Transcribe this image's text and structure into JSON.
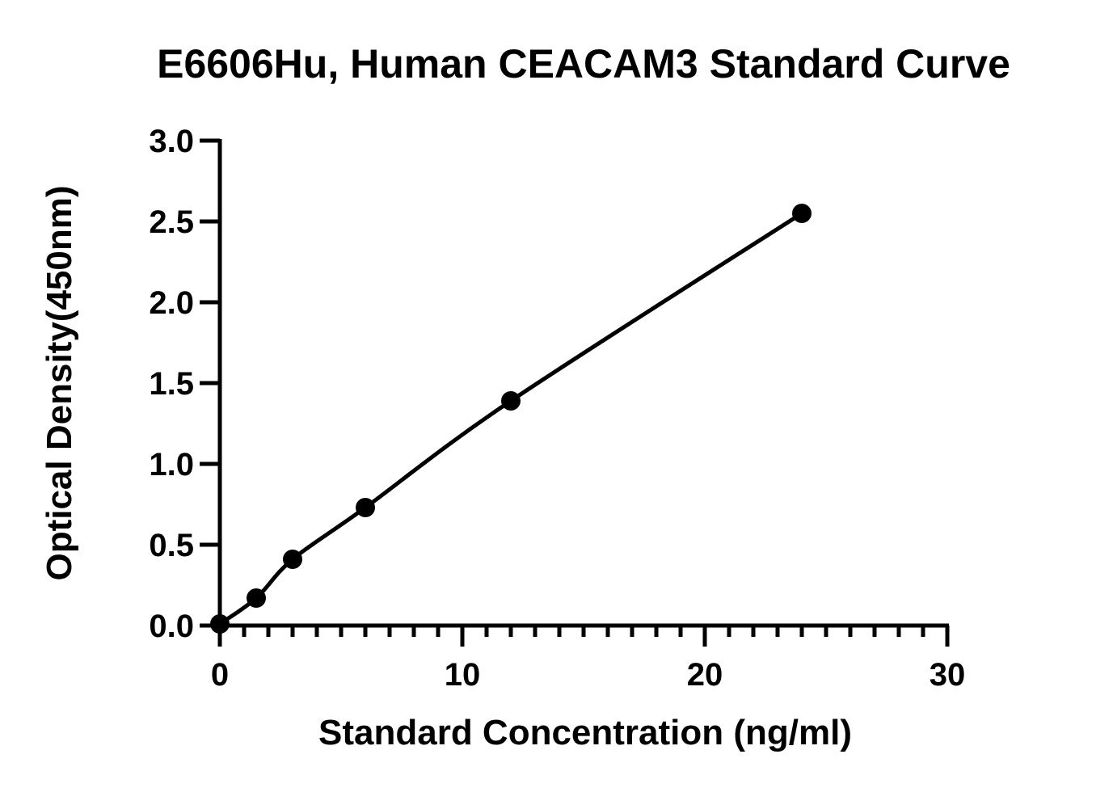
{
  "chart_data": {
    "type": "scatter",
    "title": "E6606Hu, Human CEACAM3 Standard Curve",
    "xlabel": "Standard Concentration (ng/ml)",
    "ylabel": "Optical Density(450nm)",
    "xlim": [
      0,
      30
    ],
    "ylim": [
      0,
      3.0
    ],
    "x_ticks": [
      0,
      10,
      20,
      30
    ],
    "x_tick_labels": [
      "0",
      "10",
      "20",
      "30"
    ],
    "x_minor_step": 1,
    "y_ticks": [
      0,
      0.5,
      1.0,
      1.5,
      2.0,
      2.5,
      3.0
    ],
    "y_tick_labels": [
      "0.0",
      "0.5",
      "1.0",
      "1.5",
      "2.0",
      "2.5",
      "3.0"
    ],
    "grid": false,
    "series": [
      {
        "x": [
          0,
          1.5,
          3,
          6,
          12,
          24
        ],
        "y": [
          0.01,
          0.17,
          0.41,
          0.73,
          1.39,
          2.55
        ],
        "fit_line": true,
        "color": "#000000"
      }
    ]
  }
}
